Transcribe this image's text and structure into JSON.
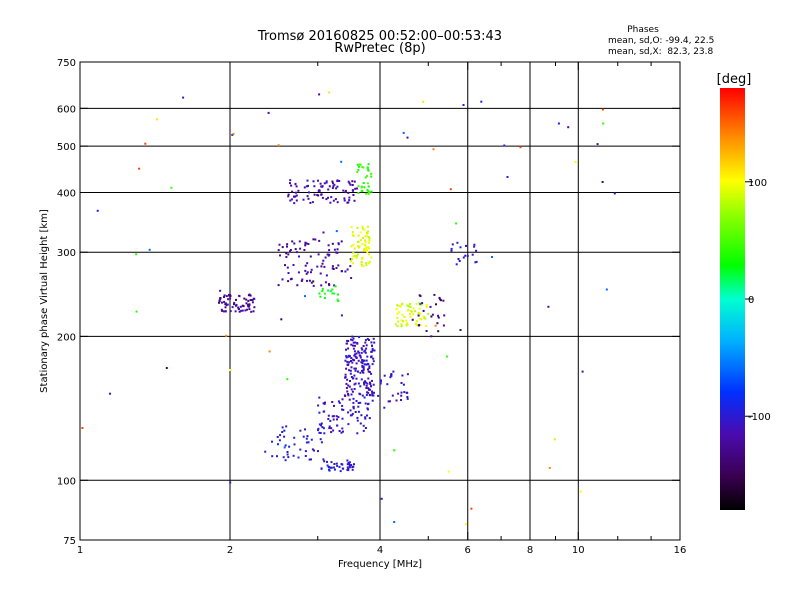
{
  "chart_data": {
    "type": "scatter",
    "title": "Tromsø 20160825 00:52:00–00:53:43",
    "subtitle": "RwPretec (8p)",
    "stats_header": "Phases",
    "stats_o": "mean, sd,O: -99.4, 22.5",
    "stats_x": "mean, sd,X:  82.3, 23.8",
    "xlabel": "Frequency [MHz]",
    "ylabel": "Stationary phase Virtual Height [km]",
    "xscale": "log",
    "yscale": "log",
    "xlim": [
      1,
      16
    ],
    "ylim": [
      75,
      750
    ],
    "xticks": [
      1,
      2,
      4,
      6,
      8,
      10,
      16
    ],
    "xtick_labels": [
      "1",
      "2",
      "4",
      "6",
      "8",
      "10",
      "16"
    ],
    "xgrid": [
      2,
      4,
      6,
      8,
      10
    ],
    "xminor": [
      3,
      5,
      7,
      9,
      12,
      14
    ],
    "yticks": [
      75,
      100,
      200,
      300,
      400,
      500,
      600,
      750
    ],
    "ytick_labels": [
      "75",
      "100",
      "200",
      "300",
      "400",
      "500",
      "600",
      "750"
    ],
    "ygrid": [
      100,
      200,
      300,
      400,
      500,
      600
    ],
    "grid": true,
    "colorbar": {
      "label": "[deg]",
      "range": [
        -180,
        180
      ],
      "ticks": [
        100,
        0,
        -100
      ],
      "tick_labels": [
        "100",
        "0",
        "-100"
      ]
    },
    "point_groups": [
      {
        "name": "E region low",
        "x_range": [
          3.05,
          3.55
        ],
        "h_range": [
          104,
          110
        ],
        "phase": -100,
        "count": 40
      },
      {
        "name": "F1 trace low",
        "x_range": [
          2.35,
          3.1
        ],
        "h_range": [
          110,
          130
        ],
        "phase": -100,
        "count": 45
      },
      {
        "name": "F1 trace mid",
        "x_range": [
          3.0,
          3.8
        ],
        "h_range": [
          125,
          150
        ],
        "phase": -105,
        "count": 80
      },
      {
        "name": "F1 cusp column",
        "x_range": [
          3.4,
          3.9
        ],
        "h_range": [
          150,
          200
        ],
        "phase": -108,
        "count": 170
      },
      {
        "name": "F1 extension",
        "x_range": [
          3.8,
          4.6
        ],
        "h_range": [
          140,
          170
        ],
        "phase": -105,
        "count": 35
      },
      {
        "name": "blob 2 MHz",
        "x_range": [
          1.9,
          2.25
        ],
        "h_range": [
          225,
          245
        ],
        "phase": -125,
        "count": 70
      },
      {
        "name": "F2 cluster",
        "x_range": [
          2.5,
          3.5
        ],
        "h_range": [
          255,
          320
        ],
        "phase": -120,
        "count": 90
      },
      {
        "name": "F2 upper",
        "x_range": [
          2.6,
          3.6
        ],
        "h_range": [
          380,
          425
        ],
        "phase": -115,
        "count": 90
      },
      {
        "name": "X mode 3.6 MHz",
        "x_range": [
          3.5,
          3.85
        ],
        "h_range": [
          280,
          340
        ],
        "phase": 95,
        "count": 70
      },
      {
        "name": "X mode 4.5 MHz",
        "x_range": [
          4.3,
          5.0
        ],
        "h_range": [
          210,
          235
        ],
        "phase": 90,
        "count": 60
      },
      {
        "name": "green 3.8 MHz",
        "x_range": [
          3.6,
          3.85
        ],
        "h_range": [
          395,
          460
        ],
        "phase": 40,
        "count": 35
      },
      {
        "name": "green 3.2 MHz",
        "x_range": [
          3.0,
          3.3
        ],
        "h_range": [
          235,
          255
        ],
        "phase": 30,
        "count": 15
      },
      {
        "name": "purple right",
        "x_range": [
          4.6,
          5.4
        ],
        "h_range": [
          200,
          245
        ],
        "phase": -135,
        "count": 25
      },
      {
        "name": "blue 5.8 MHz",
        "x_range": [
          5.5,
          6.3
        ],
        "h_range": [
          280,
          315
        ],
        "phase": -100,
        "count": 18
      },
      {
        "name": "sparse noise",
        "x_range": [
          1.0,
          12.5
        ],
        "h_range": [
          78,
          680
        ],
        "phase": "mixed",
        "count": 70
      }
    ]
  }
}
